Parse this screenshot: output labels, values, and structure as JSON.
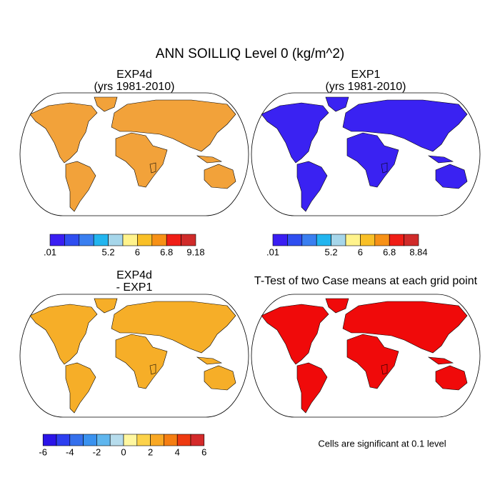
{
  "title": "ANN SOILLIQ Level 0 (kg/m^2)",
  "panels": [
    {
      "title": [
        "EXP4d",
        "(yrs 1981-2010)"
      ],
      "map_color": "#f2a23a",
      "colorbar": {
        "colors": [
          "#3a1ef2",
          "#2f4ef0",
          "#3a7ff0",
          "#22b5ef",
          "#a6d6ea",
          "#fff38c",
          "#f9c027",
          "#f79116",
          "#f01e16",
          "#d02b2a"
        ],
        "labels": [
          ".01",
          null,
          null,
          null,
          "5.2",
          null,
          "6",
          null,
          "6.8",
          null,
          "9.18"
        ]
      }
    },
    {
      "title": [
        "EXP1",
        "(yrs 1981-2010)"
      ],
      "map_color": "#3a22f2",
      "colorbar": {
        "colors": [
          "#3a1ef2",
          "#2f4ef0",
          "#3a7ff0",
          "#22b5ef",
          "#a6d6ea",
          "#fff38c",
          "#f9c027",
          "#f79116",
          "#f01e16",
          "#d02b2a"
        ],
        "labels": [
          ".01",
          null,
          null,
          null,
          "5.2",
          null,
          "6",
          null,
          "6.8",
          null,
          "8.84"
        ]
      }
    },
    {
      "title": [
        "EXP4d",
        "- EXP1"
      ],
      "map_color": "#f6ae28",
      "colorbar": {
        "colors": [
          "#2b14e8",
          "#2d3ff0",
          "#3570ec",
          "#3a92ef",
          "#5fb6ee",
          "#b6dcec",
          "#fff7a0",
          "#fcd24a",
          "#f9a824",
          "#f57e12",
          "#ee3a10",
          "#d42a2a"
        ],
        "labels": [
          null,
          -6,
          null,
          -4,
          null,
          -2,
          null,
          0,
          null,
          2,
          null,
          4,
          null,
          6,
          null
        ]
      }
    },
    {
      "title": [
        "T-Test of two Case means at each grid point"
      ],
      "map_color": "#f00a0a"
    }
  ],
  "footnote": "Cells are significant at 0.1 level"
}
